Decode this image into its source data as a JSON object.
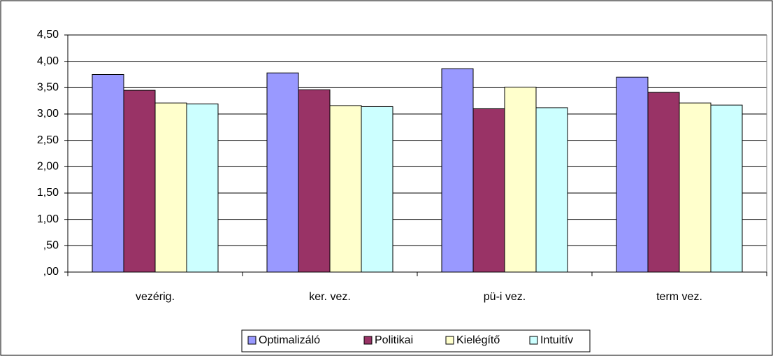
{
  "chart_data": {
    "type": "bar",
    "categories": [
      "vezérig.",
      "ker. vez.",
      "pü-i vez.",
      "term vez."
    ],
    "series": [
      {
        "name": "Optimalizáló",
        "color": "#9999ff",
        "values": [
          3.75,
          3.78,
          3.86,
          3.7
        ]
      },
      {
        "name": "Politikai",
        "color": "#993366",
        "values": [
          3.45,
          3.46,
          3.1,
          3.41
        ]
      },
      {
        "name": "Kielégítő",
        "color": "#ffffcc",
        "values": [
          3.21,
          3.16,
          3.51,
          3.21
        ]
      },
      {
        "name": "Intuitív",
        "color": "#ccffff",
        "values": [
          3.19,
          3.14,
          3.12,
          3.17
        ]
      }
    ],
    "ylim": [
      0,
      4.5
    ],
    "yticks": [
      {
        "value": 0,
        "label": ",00"
      },
      {
        "value": 0.5,
        "label": ",50"
      },
      {
        "value": 1,
        "label": "1,00"
      },
      {
        "value": 1.5,
        "label": "1,50"
      },
      {
        "value": 2,
        "label": "2,00"
      },
      {
        "value": 2.5,
        "label": "2,50"
      },
      {
        "value": 3,
        "label": "3,00"
      },
      {
        "value": 3.5,
        "label": "3,50"
      },
      {
        "value": 4,
        "label": "4,00"
      },
      {
        "value": 4.5,
        "label": "4,50"
      }
    ],
    "grid": true,
    "legend": "bottom"
  }
}
